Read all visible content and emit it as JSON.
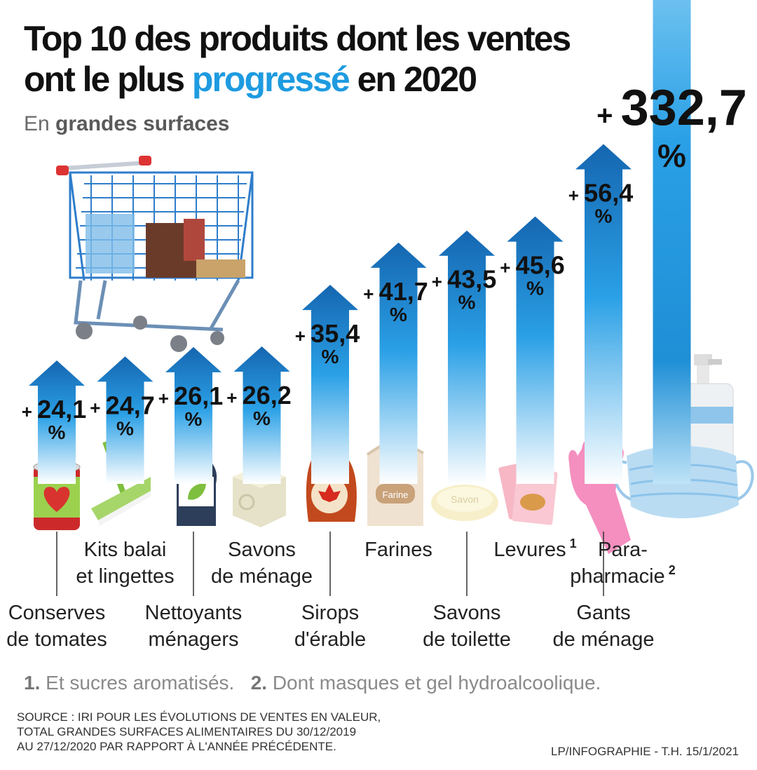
{
  "title_part1": "Top 10 des produits dont les ventes",
  "title_part2": "ont le plus ",
  "title_accent": "progressé",
  "title_part3": " en 2020",
  "subtitle_prefix": "En ",
  "subtitle_bold": "grandes surfaces",
  "footnote1_num": "1.",
  "footnote1_text": " Et sucres aromatisés.",
  "footnote2_num": "2.",
  "footnote2_text": " Dont masques et gel hydroalcoolique.",
  "source_lines": [
    "SOURCE : IRI POUR LES ÉVOLUTIONS DE VENTES EN VALEUR,",
    "TOTAL GRANDES SURFACES ALIMENTAIRES DU 30/12/2019",
    "AU 27/12/2020 PAR RAPPORT À L'ANNÉE PRÉCÉDENTE."
  ],
  "credit": "LP/INFOGRAPHIE - T.H.  15/1/2021",
  "colors": {
    "accent": "#1e9be0",
    "arrow_top": "#1566b0",
    "arrow_mid": "#2aa0e6",
    "arrow_bottom": "#ffffff"
  },
  "chart_data": {
    "type": "bar",
    "title": "Top 10 des produits dont les ventes ont le plus progressé en 2020",
    "subtitle": "En grandes surfaces",
    "unit": "%",
    "categories": [
      {
        "label": [
          "Conserves",
          "de tomates"
        ],
        "value": 24.1,
        "value_label": "24,1",
        "label_pos": "low"
      },
      {
        "label": [
          "Kits balai",
          "et lingettes"
        ],
        "value": 24.7,
        "value_label": "24,7",
        "label_pos": "high"
      },
      {
        "label": [
          "Nettoyants",
          "ménagers"
        ],
        "value": 26.1,
        "value_label": "26,1",
        "label_pos": "low"
      },
      {
        "label": [
          "Savons",
          "de ménage"
        ],
        "value": 26.2,
        "value_label": "26,2",
        "label_pos": "high"
      },
      {
        "label": [
          "Sirops",
          "d'érable"
        ],
        "value": 35.4,
        "value_label": "35,4",
        "label_pos": "low"
      },
      {
        "label": [
          "Farines"
        ],
        "value": 41.7,
        "value_label": "41,7",
        "label_pos": "high"
      },
      {
        "label": [
          "Savons",
          "de toilette"
        ],
        "value": 43.5,
        "value_label": "43,5",
        "label_pos": "low"
      },
      {
        "label": [
          "Levures"
        ],
        "sup": "1",
        "value": 45.6,
        "value_label": "45,6",
        "label_pos": "high"
      },
      {
        "label": [
          "Gants",
          "de ménage"
        ],
        "value": 56.4,
        "value_label": "56,4",
        "label_pos": "low"
      },
      {
        "label": [
          "Para-",
          "pharmacie"
        ],
        "sup": "2",
        "value": 332.7,
        "value_label": "332,7",
        "label_pos": "high"
      }
    ]
  }
}
